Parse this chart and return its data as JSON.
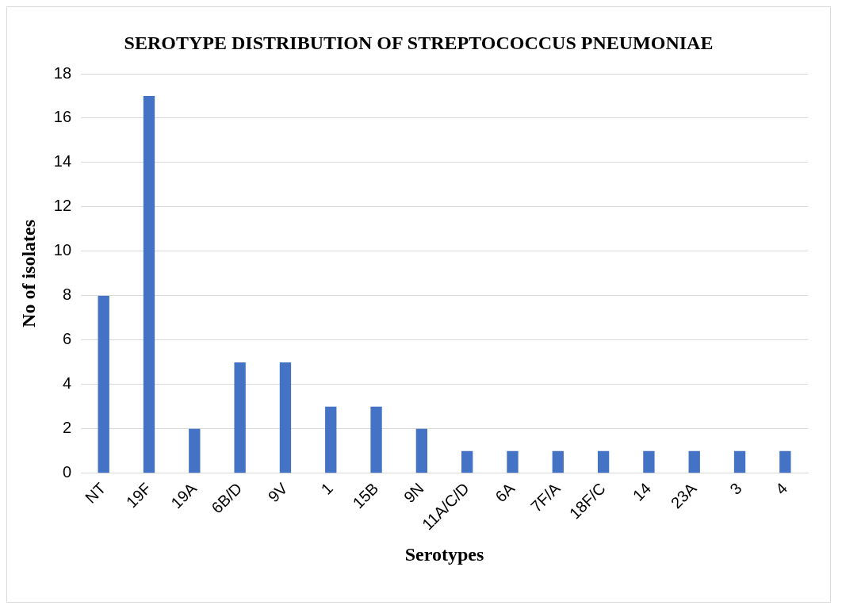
{
  "chart_data": {
    "type": "bar",
    "title": "SEROTYPE DISTRIBUTION OF STREPTOCOCCUS PNEUMONIAE",
    "xlabel": "Serotypes",
    "ylabel": "No of isolates",
    "categories": [
      "NT",
      "19F",
      "19A",
      "6B/D",
      "9V",
      "1",
      "15B",
      "9N",
      "11A/C/D",
      "6A",
      "7F/A",
      "18F/C",
      "14",
      "23A",
      "3",
      "4"
    ],
    "values": [
      8,
      17,
      2,
      5,
      5,
      3,
      3,
      2,
      1,
      1,
      1,
      1,
      1,
      1,
      1,
      1
    ],
    "color": "#4472c4",
    "ylim": [
      0,
      18
    ],
    "yticks": [
      0,
      2,
      4,
      6,
      8,
      10,
      12,
      14,
      16,
      18
    ],
    "grid": "y"
  }
}
